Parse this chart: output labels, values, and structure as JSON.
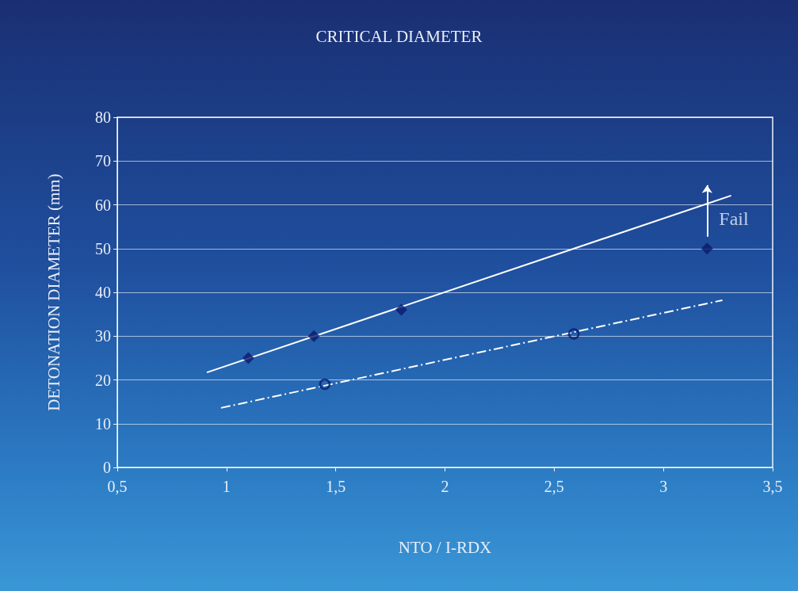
{
  "chart_data": {
    "type": "scatter",
    "title": "CRITICAL DIAMETER",
    "xlabel": "NTO / I-RDX",
    "ylabel": "DETONATION DIAMETER (mm)",
    "xlim": [
      0.5,
      3.5
    ],
    "xticks": [
      {
        "value": 0.5,
        "label": "0,5"
      },
      1,
      {
        "value": 1.5,
        "label": "1,5"
      },
      2,
      {
        "value": 2.5,
        "label": "2,5"
      },
      3,
      {
        "value": 3.5,
        "label": "3,5"
      }
    ],
    "ylim": [
      0,
      80
    ],
    "yticks": [
      0,
      10,
      20,
      30,
      40,
      50,
      60,
      70,
      80
    ],
    "grid": "y",
    "series": [
      {
        "marker": "diamond",
        "color": "#0b1a6b",
        "x": [
          1.1,
          1.4,
          1.8,
          3.2
        ],
        "values": [
          25,
          30,
          36,
          50
        ]
      },
      {
        "marker": "circle",
        "color": "#0b1a6b",
        "x": [
          1.45,
          2.59
        ],
        "values": [
          19,
          30.5
        ]
      },
      {
        "type": "line",
        "marker": "none",
        "line_style": "solid",
        "color": "#ffffff",
        "x": [
          0.91,
          3.31
        ],
        "values": [
          21.7,
          62.1
        ]
      },
      {
        "type": "line",
        "marker": "none",
        "line_style": "dashed",
        "color": "#ffffff",
        "x": [
          0.975,
          3.27
        ],
        "values": [
          13.6,
          38.2
        ]
      }
    ],
    "annotations": [
      {
        "text": "Fail",
        "x": 3.2,
        "y": 50
      }
    ]
  }
}
